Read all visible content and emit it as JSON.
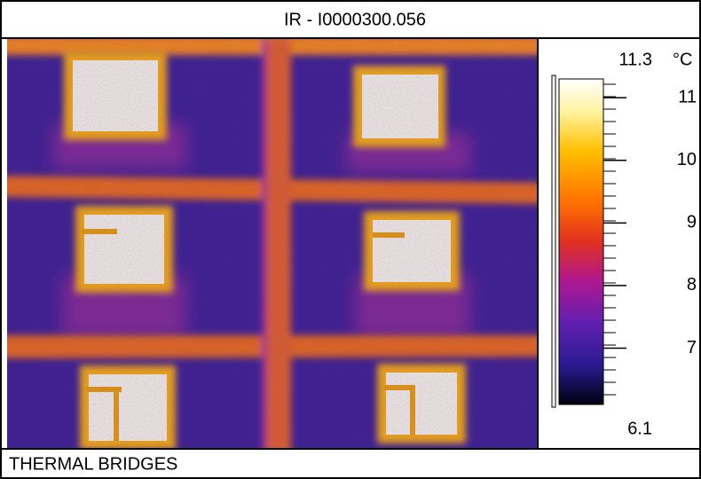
{
  "title": "IR - I0000300.056",
  "caption": "THERMAL BRIDGES",
  "scale": {
    "max": 11.3,
    "min": 6.1,
    "unit": "°C",
    "ticks": [
      7,
      8,
      9,
      10,
      11
    ]
  }
}
